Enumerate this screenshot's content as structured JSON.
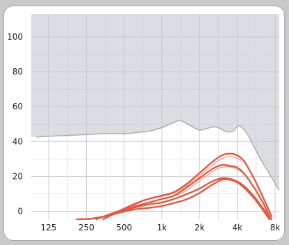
{
  "chart_data": {
    "type": "line",
    "title": "",
    "xlabel": "",
    "ylabel": "",
    "xscale": "log2",
    "x_ticks": [
      125,
      250,
      500,
      1000,
      2000,
      4000,
      8000
    ],
    "x_tick_labels": [
      "125",
      "250",
      "500",
      "1k",
      "2k",
      "4k",
      "8k"
    ],
    "y_ticks": [
      0,
      20,
      40,
      60,
      80,
      100
    ],
    "y_tick_labels": [
      "0",
      "20",
      "40",
      "60",
      "80",
      "100"
    ],
    "xlim": [
      100,
      9500
    ],
    "ylim": [
      -5,
      110
    ],
    "grid": true,
    "legend": "none",
    "colors": {
      "panel_background": "#ffffff",
      "outer_background": "#c9c9c9",
      "shaded_region": "#dcdce3",
      "threshold_line": "#a9a9a9",
      "grid": "#c8c8c8",
      "curves": "#dd5b43",
      "curves_faint": "#f08a76"
    },
    "shaded_area": {
      "name": "",
      "description_of_region": "above boundary",
      "boundary": [
        [
          100,
          42.5
        ],
        [
          125,
          43
        ],
        [
          180,
          43.5
        ],
        [
          250,
          44
        ],
        [
          350,
          44.5
        ],
        [
          500,
          44.5
        ],
        [
          600,
          45
        ],
        [
          800,
          46
        ],
        [
          1000,
          48
        ],
        [
          1250,
          51
        ],
        [
          1400,
          52
        ],
        [
          1600,
          50
        ],
        [
          1800,
          48
        ],
        [
          2000,
          46.5
        ],
        [
          2300,
          47.5
        ],
        [
          2600,
          48.5
        ],
        [
          2900,
          47.5
        ],
        [
          3300,
          45.5
        ],
        [
          3700,
          46
        ],
        [
          4100,
          49
        ],
        [
          4500,
          47
        ],
        [
          5000,
          42
        ],
        [
          6000,
          31
        ],
        [
          7000,
          23
        ],
        [
          8000,
          16
        ],
        [
          8600,
          12
        ]
      ]
    },
    "series": [
      {
        "values": [
          [
            340,
            -5
          ],
          [
            500,
            1.5
          ],
          [
            700,
            6
          ],
          [
            1000,
            9
          ],
          [
            1250,
            11
          ],
          [
            1600,
            16
          ],
          [
            2000,
            22
          ],
          [
            2500,
            28
          ],
          [
            3000,
            32
          ],
          [
            3500,
            33
          ],
          [
            4000,
            32
          ],
          [
            4600,
            28
          ],
          [
            5500,
            18
          ],
          [
            6500,
            7
          ],
          [
            7500,
            -3
          ]
        ]
      },
      {
        "values": [
          [
            300,
            -5
          ],
          [
            450,
            0
          ],
          [
            700,
            4
          ],
          [
            1000,
            7
          ],
          [
            1250,
            9
          ],
          [
            1600,
            14
          ],
          [
            2000,
            19
          ],
          [
            2500,
            24
          ],
          [
            3000,
            26.5
          ],
          [
            3500,
            26
          ],
          [
            4000,
            25
          ],
          [
            4600,
            21
          ],
          [
            5500,
            13
          ],
          [
            6500,
            4
          ],
          [
            7300,
            -4
          ]
        ]
      },
      {
        "values": [
          [
            260,
            -5
          ],
          [
            400,
            -2
          ],
          [
            600,
            2
          ],
          [
            800,
            4
          ],
          [
            1000,
            5
          ],
          [
            1300,
            7.5
          ],
          [
            1600,
            10
          ],
          [
            2000,
            13
          ],
          [
            2500,
            17
          ],
          [
            3000,
            19
          ],
          [
            3500,
            18.5
          ],
          [
            4000,
            17
          ],
          [
            4600,
            14
          ],
          [
            5500,
            8
          ],
          [
            6500,
            1
          ],
          [
            7500,
            -5
          ]
        ]
      },
      {
        "values": [
          [
            210,
            -5
          ],
          [
            300,
            -4
          ],
          [
            450,
            -1
          ],
          [
            600,
            1
          ],
          [
            800,
            2
          ],
          [
            1000,
            3
          ],
          [
            1300,
            5
          ],
          [
            1600,
            7
          ],
          [
            2000,
            10.5
          ],
          [
            2500,
            15
          ],
          [
            3000,
            18
          ],
          [
            3500,
            18
          ],
          [
            4000,
            16.5
          ],
          [
            4600,
            13
          ],
          [
            5500,
            7
          ],
          [
            6500,
            0
          ],
          [
            7200,
            -5
          ]
        ]
      }
    ],
    "faint_series": [
      {
        "values": [
          [
            360,
            -4
          ],
          [
            550,
            2
          ],
          [
            750,
            6.5
          ],
          [
            1000,
            8.5
          ],
          [
            1300,
            11
          ],
          [
            1700,
            16.5
          ],
          [
            2200,
            23
          ],
          [
            2700,
            28
          ],
          [
            3200,
            31
          ],
          [
            3800,
            31
          ],
          [
            4300,
            29
          ]
        ]
      },
      {
        "values": [
          [
            320,
            -4
          ],
          [
            500,
            0.5
          ],
          [
            750,
            4.5
          ],
          [
            1050,
            7.5
          ],
          [
            1400,
            10
          ],
          [
            1800,
            15
          ],
          [
            2300,
            20.5
          ],
          [
            2800,
            24.5
          ],
          [
            3300,
            25.5
          ],
          [
            3900,
            24.5
          ],
          [
            4400,
            22
          ]
        ]
      }
    ]
  }
}
